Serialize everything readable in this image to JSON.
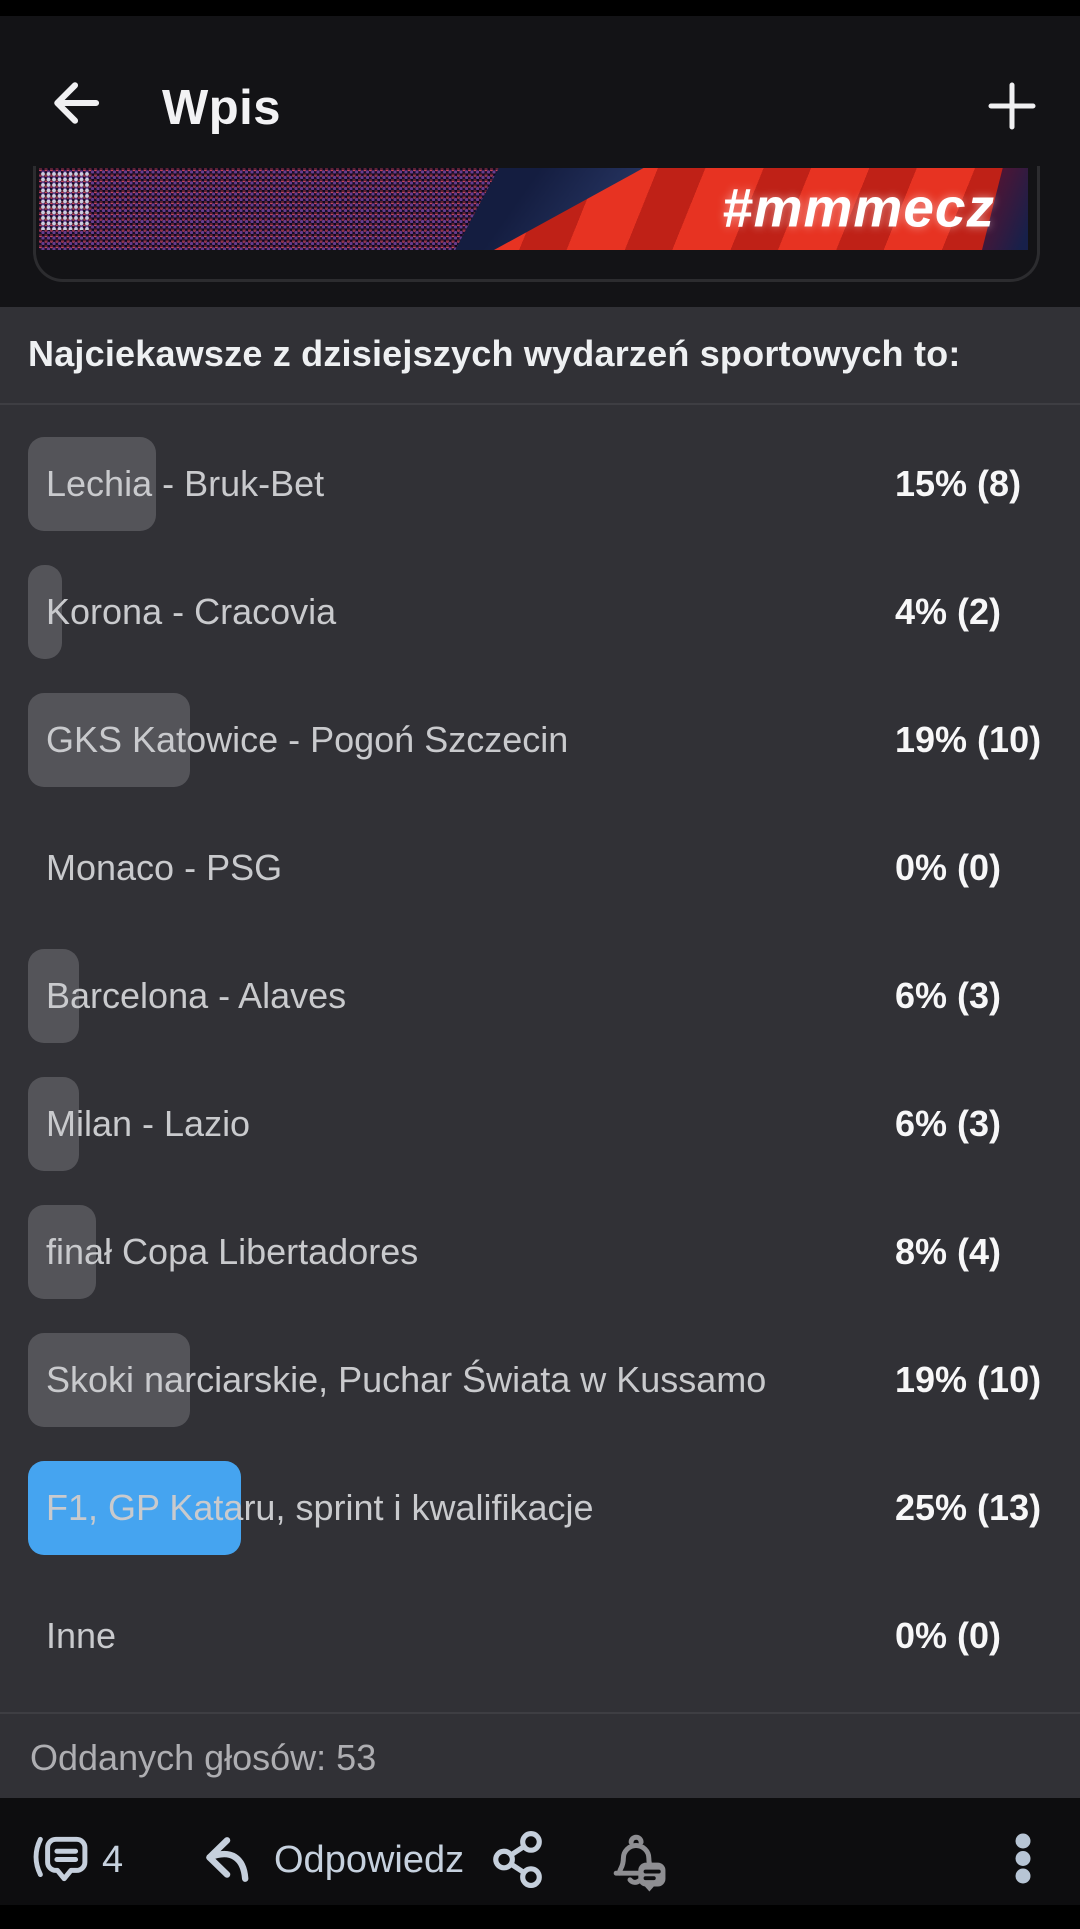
{
  "header": {
    "title": "Wpis",
    "back_icon": "arrow-left-icon",
    "add_icon": "plus-icon"
  },
  "banner": {
    "hashtag": "#mmmecz"
  },
  "poll": {
    "question": "Najciekawsze z dzisiejszych wydarzeń sportowych to:",
    "options": [
      {
        "label": "Lechia - Bruk-Bet",
        "percent": 15,
        "votes": 8,
        "display": "15% (8)",
        "selected": false
      },
      {
        "label": "Korona - Cracovia",
        "percent": 4,
        "votes": 2,
        "display": "4% (2)",
        "selected": false
      },
      {
        "label": "GKS Katowice - Pogoń Szczecin",
        "percent": 19,
        "votes": 10,
        "display": "19% (10)",
        "selected": false
      },
      {
        "label": "Monaco - PSG",
        "percent": 0,
        "votes": 0,
        "display": "0% (0)",
        "selected": false
      },
      {
        "label": "Barcelona - Alaves",
        "percent": 6,
        "votes": 3,
        "display": "6% (3)",
        "selected": false
      },
      {
        "label": "Milan - Lazio",
        "percent": 6,
        "votes": 3,
        "display": "6% (3)",
        "selected": false
      },
      {
        "label": "finał Copa Libertadores",
        "percent": 8,
        "votes": 4,
        "display": "8% (4)",
        "selected": false
      },
      {
        "label": "Skoki narciarskie, Puchar Świata w Kussamo",
        "percent": 19,
        "votes": 10,
        "display": "19% (10)",
        "selected": false
      },
      {
        "label": "F1, GP Kataru, sprint i kwalifikacje",
        "percent": 25,
        "votes": 13,
        "display": "25% (13)",
        "selected": true
      },
      {
        "label": "Inne",
        "percent": 0,
        "votes": 0,
        "display": "0% (0)",
        "selected": false
      }
    ],
    "total_votes": 53,
    "total_votes_label": "Oddanych głosów: 53"
  },
  "actions": {
    "comments_count": "4",
    "reply_label": "Odpowiedz",
    "icons": [
      "comments-icon",
      "reply-icon",
      "share-icon",
      "notification-bell-icon",
      "kebab-menu-icon"
    ]
  },
  "colors": {
    "selected_bar": "#45a4f0",
    "bar": "#545459",
    "poll_background": "#313136",
    "icon_accent": "#c5cfdc"
  }
}
